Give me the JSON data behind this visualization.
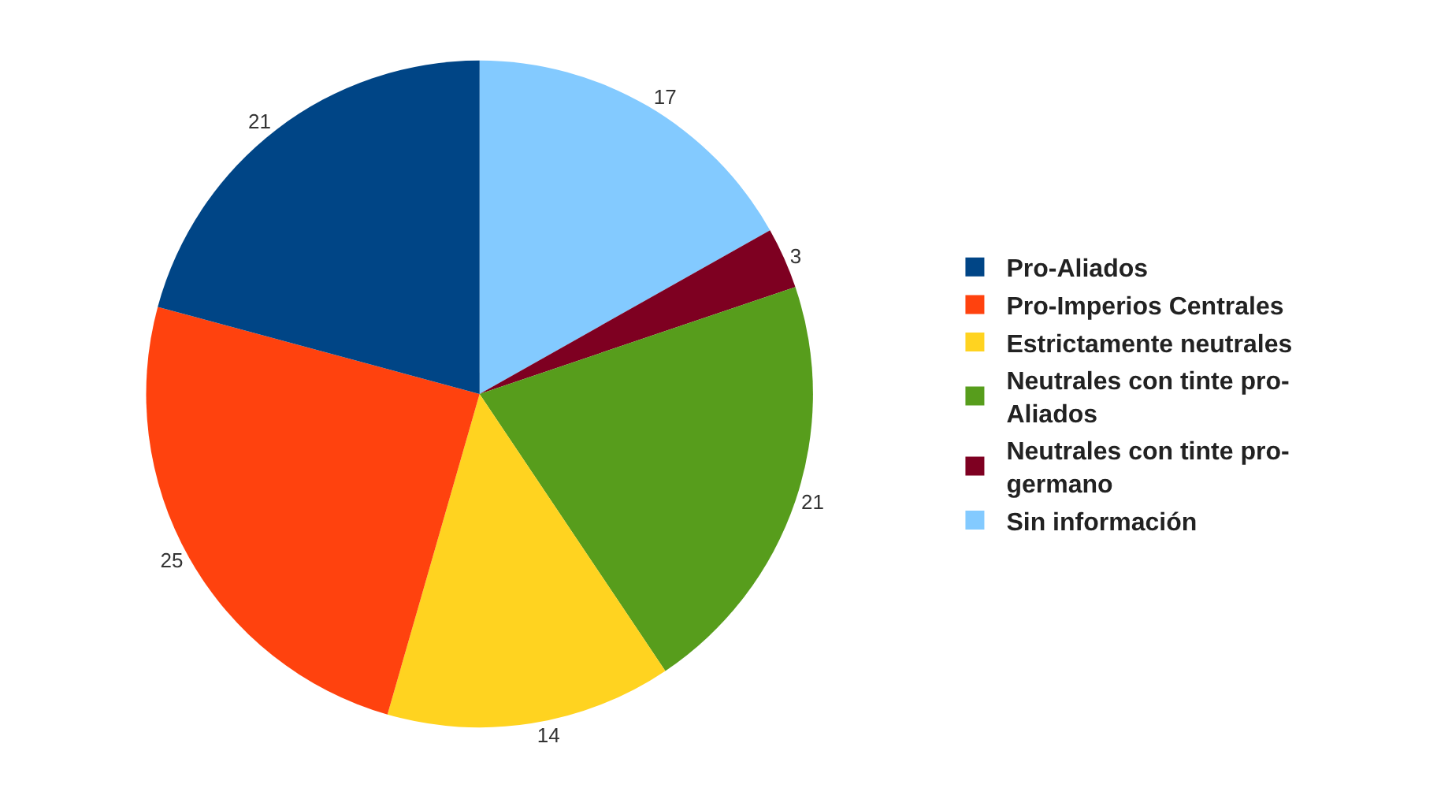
{
  "chart_data": {
    "type": "pie",
    "categories": [
      "Pro-Aliados",
      "Pro-Imperios Centrales",
      "Estrictamente neutrales",
      "Neutrales con tinte pro-Aliados",
      "Neutrales con tinte pro-germano",
      "Sin información"
    ],
    "values": [
      21,
      25,
      14,
      21,
      3,
      17
    ],
    "colors": [
      "#004586",
      "#ff420e",
      "#ffd320",
      "#579d1c",
      "#7e0021",
      "#83caff"
    ],
    "data_labels": true,
    "legend": "right"
  }
}
